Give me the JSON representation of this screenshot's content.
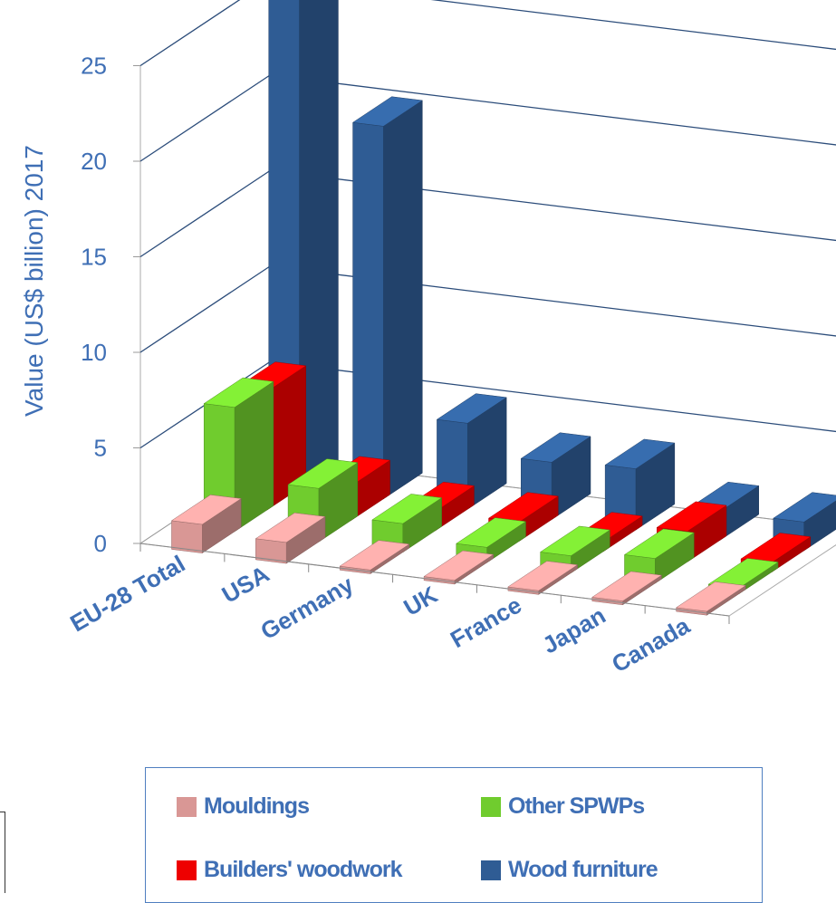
{
  "chart_data": {
    "type": "bar",
    "subtype": "3d-clustered-column",
    "ylabel": "Value (US$ billion)  2017",
    "ylim": [
      0,
      25
    ],
    "yticks": [
      "0",
      "5",
      "10",
      "15",
      "20",
      "25"
    ],
    "grid": true,
    "legend_position": "bottom",
    "categories": [
      "EU-28 Total",
      "USA",
      "Germany",
      "UK",
      "France",
      "Japan",
      "Canada"
    ],
    "series": [
      {
        "name": "Mouldings",
        "color": "#d99795",
        "values": [
          1.5,
          1.1,
          0.2,
          0.2,
          0.2,
          0.2,
          0.2
        ]
      },
      {
        "name": "Other SPWPs",
        "color": "#70cc2e",
        "values": [
          6.5,
          2.8,
          1.5,
          0.8,
          0.9,
          1.3,
          0.3
        ]
      },
      {
        "name": "Builders' woodwork",
        "color": "#ee0000",
        "values": [
          6.2,
          1.8,
          1.0,
          1.0,
          0.5,
          1.6,
          0.5
        ]
      },
      {
        "name": "Wood furniture",
        "color": "#2f5c94",
        "values": [
          26.0,
          19.5,
          4.5,
          3.0,
          3.2,
          1.5,
          1.5
        ]
      }
    ]
  }
}
